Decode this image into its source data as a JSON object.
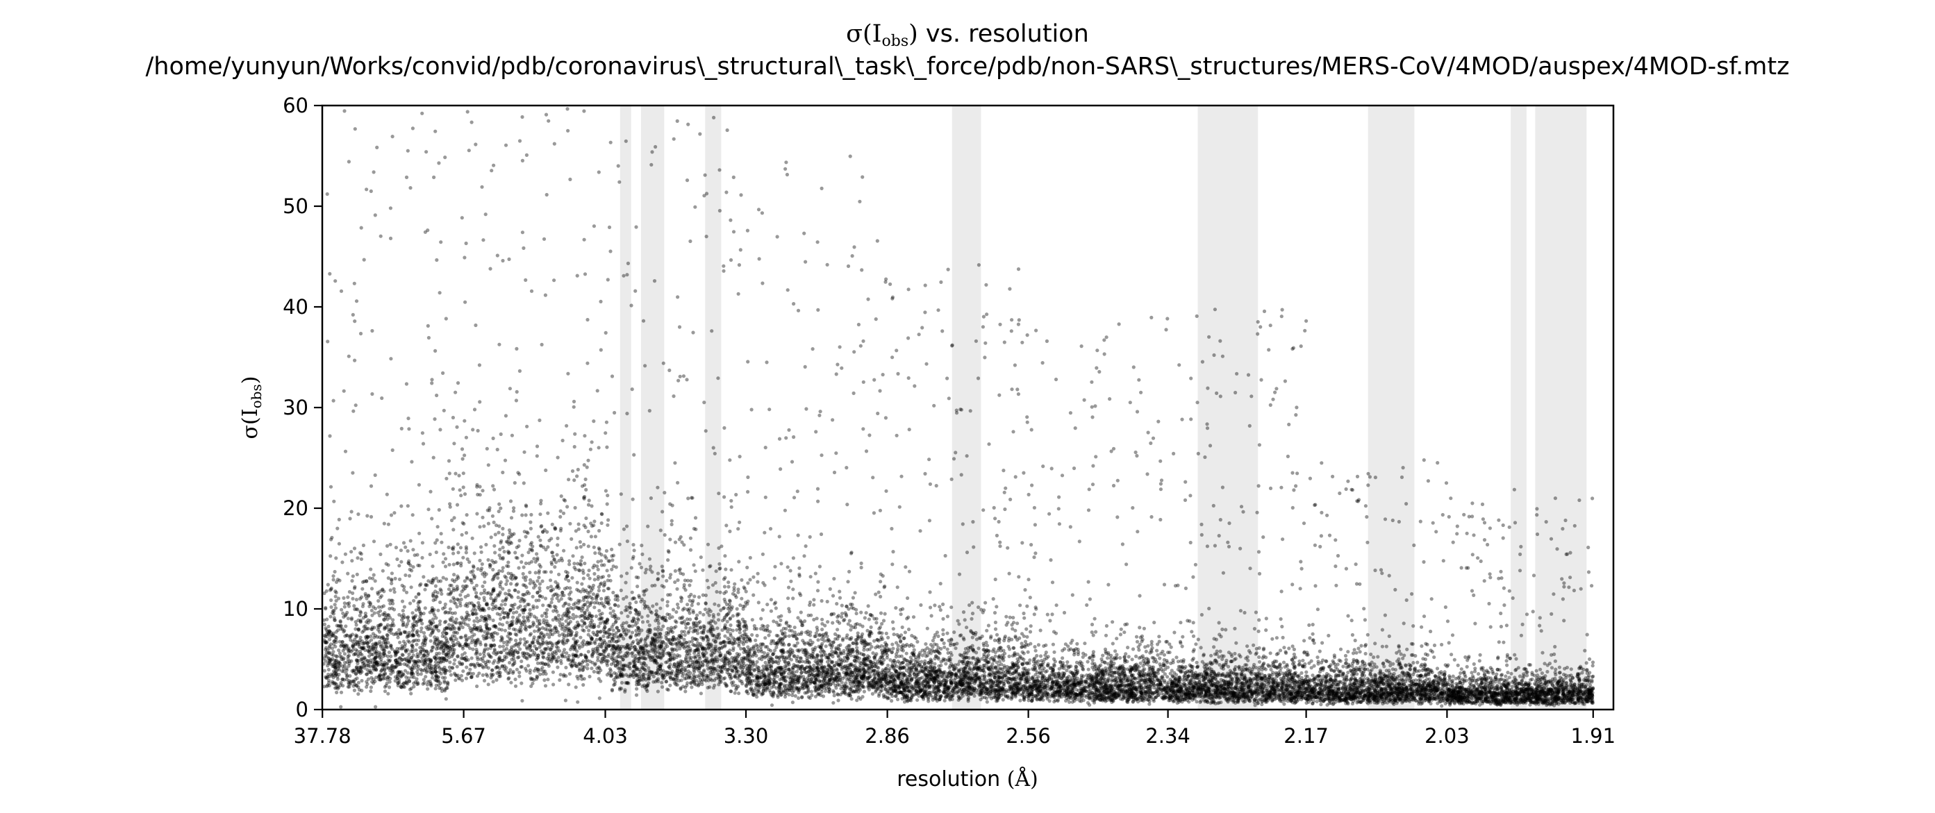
{
  "chart_data": {
    "type": "scatter",
    "title_prefix": "σ(I",
    "title_sub": "obs",
    "title_suffix": ") vs. resolution",
    "subtitle": "/home/yunyun/Works/convid/pdb/coronavirus\\_structural\\_task\\_force/pdb/non-SARS\\_structures/MERS-CoV/4MOD/auspex/4MOD-sf.mtz",
    "xlabel_text": "resolution ",
    "xlabel_unit": "(Å)",
    "ylabel_prefix": "σ(I",
    "ylabel_sub": "obs",
    "ylabel_suffix": ")",
    "x_scale": "1/d^2",
    "xlim_resolution": [
      38.5,
      1.895
    ],
    "ylim": [
      0,
      60
    ],
    "x_ticks": [
      37.78,
      5.67,
      4.03,
      3.3,
      2.86,
      2.56,
      2.34,
      2.17,
      2.03,
      1.91
    ],
    "x_tick_labels": [
      "37.78",
      "5.67",
      "4.03",
      "3.30",
      "2.86",
      "2.56",
      "2.34",
      "2.17",
      "2.03",
      "1.91"
    ],
    "y_ticks": [
      0,
      10,
      20,
      30,
      40,
      50,
      60
    ],
    "y_tick_labels": [
      "0",
      "10",
      "20",
      "30",
      "40",
      "50",
      "60"
    ],
    "ice_ring_bands_resolution": [
      [
        3.93,
        3.86
      ],
      [
        3.8,
        3.67
      ],
      [
        3.47,
        3.4
      ],
      [
        2.71,
        2.65
      ],
      [
        2.3,
        2.225
      ],
      [
        2.105,
        2.06
      ],
      [
        1.975,
        1.962
      ],
      [
        1.955,
        1.915
      ]
    ],
    "band_color": "#ebebeb",
    "marker_color": "#000000",
    "marker_alpha": 0.4,
    "grid": false,
    "legend": "none",
    "point_count_shown": "dense cloud, roughly 14000 reflections",
    "density_profile": [
      {
        "resolution_range": [
          38,
          6
        ],
        "median_sigma": 6,
        "max_sigma": 60
      },
      {
        "resolution_range": [
          6,
          4.0
        ],
        "median_sigma": 9,
        "max_sigma": 60
      },
      {
        "resolution_range": [
          4.0,
          3.3
        ],
        "median_sigma": 6,
        "max_sigma": 60
      },
      {
        "resolution_range": [
          3.3,
          2.86
        ],
        "median_sigma": 4,
        "max_sigma": 55
      },
      {
        "resolution_range": [
          2.86,
          2.56
        ],
        "median_sigma": 3,
        "max_sigma": 45
      },
      {
        "resolution_range": [
          2.56,
          2.34
        ],
        "median_sigma": 2.5,
        "max_sigma": 40
      },
      {
        "resolution_range": [
          2.34,
          2.17
        ],
        "median_sigma": 2.2,
        "max_sigma": 40
      },
      {
        "resolution_range": [
          2.17,
          2.03
        ],
        "median_sigma": 2,
        "max_sigma": 25
      },
      {
        "resolution_range": [
          2.03,
          1.91
        ],
        "median_sigma": 1.6,
        "max_sigma": 22
      }
    ]
  }
}
